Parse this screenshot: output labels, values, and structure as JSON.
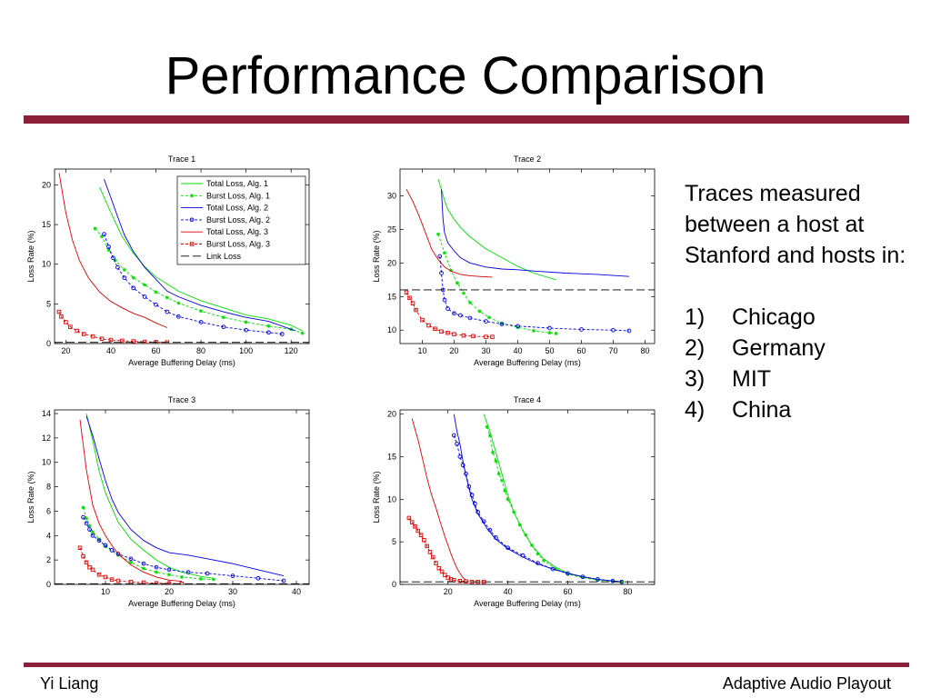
{
  "slide": {
    "title": "Performance Comparison",
    "footer_left": "Yi Liang",
    "footer_right": "Adaptive Audio Playout"
  },
  "notes": {
    "intro": "Traces measured between a host at Stanford and hosts in:",
    "items": [
      {
        "num": "1)",
        "label": "Chicago"
      },
      {
        "num": "2)",
        "label": "Germany"
      },
      {
        "num": "3)",
        "label": "MIT"
      },
      {
        "num": "4)",
        "label": "China"
      }
    ]
  },
  "colors": {
    "accent_rule": "#8b1f3a",
    "alg1": "#00dd00",
    "alg2": "#0000dd",
    "alg3": "#dd0000",
    "link": "#000000"
  },
  "legend": {
    "entries": [
      {
        "label": "Total Loss, Alg. 1",
        "color": "#00dd00",
        "style": "solid",
        "marker": "none"
      },
      {
        "label": "Burst Loss, Alg. 1",
        "color": "#00dd00",
        "style": "dashed",
        "marker": "star"
      },
      {
        "label": "Total Loss, Alg. 2",
        "color": "#0000dd",
        "style": "solid",
        "marker": "none"
      },
      {
        "label": "Burst Loss, Alg. 2",
        "color": "#0000dd",
        "style": "dashed",
        "marker": "circle"
      },
      {
        "label": "Total Loss, Alg. 3",
        "color": "#dd0000",
        "style": "solid",
        "marker": "none"
      },
      {
        "label": "Burst Loss, Alg. 3",
        "color": "#dd0000",
        "style": "dashed",
        "marker": "square"
      },
      {
        "label": "Link Loss",
        "color": "#000000",
        "style": "longdash",
        "marker": "none"
      }
    ]
  },
  "chart_data": [
    {
      "type": "line",
      "title": "Trace 1",
      "xlabel": "Average Buffering Delay (ms)",
      "ylabel": "Loss Rate (%)",
      "xlim": [
        15,
        128
      ],
      "ylim": [
        0,
        22
      ],
      "xticks": [
        20,
        40,
        60,
        80,
        100,
        120
      ],
      "yticks": [
        0,
        5,
        10,
        15,
        20
      ],
      "legend_position": "top-right",
      "grid": false,
      "series": [
        {
          "name": "Total Loss, Alg. 1",
          "x": [
            35,
            40,
            45,
            50,
            55,
            60,
            65,
            70,
            80,
            90,
            100,
            110,
            120,
            125
          ],
          "y": [
            19.7,
            16.5,
            13.5,
            11.4,
            9.7,
            8.4,
            7.5,
            6.6,
            5.4,
            4.5,
            3.6,
            3.1,
            2.3,
            1.6
          ]
        },
        {
          "name": "Burst Loss, Alg. 1",
          "x": [
            33,
            36,
            39,
            42,
            46,
            50,
            55,
            60,
            65,
            70,
            80,
            90,
            100,
            110,
            120,
            125
          ],
          "y": [
            14.5,
            13.5,
            11.8,
            10.5,
            9.3,
            8.3,
            7.4,
            6.5,
            5.8,
            5.1,
            4.1,
            3.3,
            2.7,
            2.2,
            1.8,
            1.3
          ]
        },
        {
          "name": "Total Loss, Alg. 2",
          "x": [
            37,
            40,
            43,
            46,
            50,
            55,
            60,
            65,
            70,
            80,
            90,
            100,
            110,
            120,
            122
          ],
          "y": [
            20.7,
            18.4,
            16.0,
            13.7,
            11.6,
            9.6,
            8.1,
            6.6,
            5.9,
            4.8,
            4.0,
            3.3,
            2.8,
            1.8,
            1.6
          ]
        },
        {
          "name": "Burst Loss, Alg. 2",
          "x": [
            37,
            39,
            41,
            43,
            46,
            50,
            55,
            60,
            65,
            70,
            80,
            90,
            100,
            110,
            116
          ],
          "y": [
            13.8,
            12.2,
            10.8,
            9.6,
            8.3,
            7.0,
            5.9,
            4.9,
            4.0,
            3.4,
            2.7,
            2.1,
            1.7,
            1.4,
            1.2
          ]
        },
        {
          "name": "Total Loss, Alg. 3",
          "x": [
            17,
            20,
            23,
            26,
            30,
            35,
            40,
            45,
            50,
            55,
            60,
            65
          ],
          "y": [
            21.5,
            16.5,
            13.0,
            10.5,
            8.3,
            6.5,
            5.3,
            4.5,
            3.8,
            3.3,
            2.6,
            2.0
          ]
        },
        {
          "name": "Burst Loss, Alg. 3",
          "x": [
            17,
            18,
            20,
            22,
            25,
            28,
            32,
            36,
            40,
            45,
            50,
            55,
            60,
            65
          ],
          "y": [
            4.0,
            3.4,
            2.7,
            2.1,
            1.6,
            1.2,
            0.9,
            0.6,
            0.45,
            0.35,
            0.28,
            0.22,
            0.18,
            0.15
          ]
        },
        {
          "name": "Link Loss",
          "x": [
            15,
            128
          ],
          "y": [
            0.15,
            0.15
          ]
        }
      ]
    },
    {
      "type": "line",
      "title": "Trace 2",
      "xlabel": "Average Buffering Delay (ms)",
      "ylabel": "Loss Rate (%)",
      "xlim": [
        3,
        83
      ],
      "ylim": [
        8,
        34
      ],
      "xticks": [
        10,
        20,
        30,
        40,
        50,
        60,
        70,
        80
      ],
      "yticks": [
        10,
        15,
        20,
        25,
        30
      ],
      "grid": false,
      "series": [
        {
          "name": "Total Loss, Alg. 1",
          "x": [
            15,
            16,
            17,
            18,
            20,
            22,
            25,
            30,
            35,
            40,
            45,
            52
          ],
          "y": [
            32.5,
            31.0,
            29.3,
            28.0,
            26.5,
            25.3,
            23.9,
            22.1,
            20.8,
            19.5,
            18.5,
            17.5
          ]
        },
        {
          "name": "Burst Loss, Alg. 1",
          "x": [
            15,
            17,
            19,
            21,
            23,
            25,
            28,
            31,
            35,
            40,
            45,
            50,
            52
          ],
          "y": [
            24.3,
            21.5,
            18.9,
            17.0,
            15.5,
            14.1,
            12.8,
            11.9,
            11.0,
            10.4,
            9.9,
            9.6,
            9.5
          ]
        },
        {
          "name": "Total Loss, Alg. 2",
          "x": [
            16,
            16.5,
            17,
            18,
            20,
            22,
            25,
            30,
            35,
            40,
            45,
            55,
            65,
            75
          ],
          "y": [
            31.0,
            26.5,
            24.5,
            23.0,
            21.8,
            20.8,
            20.0,
            19.4,
            19.1,
            19.0,
            18.8,
            18.5,
            18.3,
            18.0
          ]
        },
        {
          "name": "Burst Loss, Alg. 2",
          "x": [
            15.5,
            16,
            16.5,
            17,
            18,
            20,
            22,
            25,
            30,
            35,
            40,
            50,
            60,
            70,
            75
          ],
          "y": [
            21.0,
            18.5,
            16.0,
            14.5,
            13.2,
            12.5,
            12.2,
            11.8,
            11.3,
            10.9,
            10.6,
            10.3,
            10.1,
            10.0,
            9.9
          ]
        },
        {
          "name": "Total Loss, Alg. 3",
          "x": [
            5,
            7,
            9,
            11,
            13,
            15,
            17,
            19,
            22,
            25,
            28,
            32
          ],
          "y": [
            31.0,
            29.2,
            27.0,
            24.5,
            22.0,
            20.5,
            19.4,
            18.8,
            18.3,
            18.1,
            18.0,
            17.9
          ]
        },
        {
          "name": "Burst Loss, Alg. 3",
          "x": [
            5,
            6,
            7,
            8,
            10,
            12,
            14,
            16,
            18,
            20,
            23,
            26,
            30,
            32
          ],
          "y": [
            15.6,
            14.8,
            14.0,
            13.0,
            11.5,
            10.7,
            10.2,
            9.8,
            9.6,
            9.4,
            9.2,
            9.1,
            9.0,
            9.0
          ]
        },
        {
          "name": "Link Loss",
          "x": [
            3,
            83
          ],
          "y": [
            16.0,
            16.0
          ]
        }
      ]
    },
    {
      "type": "line",
      "title": "Trace 3",
      "xlabel": "Average Buffering Delay (ms)",
      "ylabel": "Loss Rate (%)",
      "xlim": [
        2,
        42
      ],
      "ylim": [
        0,
        14.3
      ],
      "xticks": [
        10,
        20,
        30,
        40
      ],
      "yticks": [
        0,
        2,
        4,
        6,
        8,
        10,
        12,
        14
      ],
      "grid": false,
      "series": [
        {
          "name": "Total Loss, Alg. 1",
          "x": [
            7,
            8,
            9,
            10,
            11,
            12,
            14,
            16,
            18,
            20,
            22,
            25,
            27
          ],
          "y": [
            14.0,
            11.8,
            9.3,
            7.5,
            6.3,
            5.1,
            3.7,
            2.8,
            2.0,
            1.4,
            1.0,
            0.65,
            0.5
          ]
        },
        {
          "name": "Burst Loss, Alg. 1",
          "x": [
            6.5,
            7,
            7.5,
            8,
            9,
            10,
            12,
            14,
            16,
            18,
            20,
            22,
            25,
            27
          ],
          "y": [
            6.3,
            5.4,
            4.8,
            4.3,
            3.7,
            3.1,
            2.4,
            1.8,
            1.3,
            1.0,
            0.8,
            0.6,
            0.45,
            0.4
          ]
        },
        {
          "name": "Total Loss, Alg. 2",
          "x": [
            7,
            8,
            9,
            10,
            11,
            12,
            14,
            16,
            18,
            20,
            23,
            26,
            30,
            34,
            38
          ],
          "y": [
            13.8,
            12.2,
            10.3,
            8.5,
            7.0,
            5.9,
            4.5,
            3.6,
            3.0,
            2.6,
            2.4,
            2.1,
            1.7,
            1.2,
            0.7
          ]
        },
        {
          "name": "Burst Loss, Alg. 2",
          "x": [
            6.5,
            7,
            7.5,
            8,
            9,
            10,
            11,
            12,
            14,
            16,
            18,
            20,
            23,
            26,
            30,
            34,
            38
          ],
          "y": [
            5.5,
            5.0,
            4.5,
            4.0,
            3.6,
            3.2,
            2.8,
            2.5,
            2.1,
            1.7,
            1.4,
            1.2,
            1.0,
            0.9,
            0.7,
            0.5,
            0.3
          ]
        },
        {
          "name": "Total Loss, Alg. 3",
          "x": [
            6,
            7,
            8,
            9,
            10,
            11,
            12,
            14,
            16,
            18,
            20,
            22
          ],
          "y": [
            13.5,
            9.4,
            6.5,
            5.0,
            4.0,
            3.2,
            2.5,
            1.6,
            1.0,
            0.6,
            0.35,
            0.25
          ]
        },
        {
          "name": "Burst Loss, Alg. 3",
          "x": [
            6,
            6.5,
            7,
            7.5,
            8,
            9,
            10,
            11,
            12,
            14,
            16,
            18,
            20,
            22
          ],
          "y": [
            3.0,
            2.3,
            1.8,
            1.4,
            1.2,
            0.8,
            0.6,
            0.4,
            0.3,
            0.2,
            0.15,
            0.1,
            0.08,
            0.05
          ]
        },
        {
          "name": "Link Loss",
          "x": [
            2,
            42
          ],
          "y": [
            0.05,
            0.05
          ]
        }
      ]
    },
    {
      "type": "line",
      "title": "Trace 4",
      "xlabel": "Average Buffering Delay (ms)",
      "ylabel": "Loss Rate (%)",
      "xlim": [
        4,
        89
      ],
      "ylim": [
        0,
        20.5
      ],
      "xticks": [
        20,
        40,
        60,
        80
      ],
      "yticks": [
        0,
        5,
        10,
        15,
        20
      ],
      "grid": false,
      "series": [
        {
          "name": "Total Loss, Alg. 1",
          "x": [
            32,
            34,
            36,
            38,
            40,
            42,
            45,
            48,
            52,
            56,
            60,
            65,
            70,
            75,
            78
          ],
          "y": [
            20.0,
            18.0,
            15.5,
            13.0,
            10.5,
            8.5,
            6.3,
            4.6,
            3.0,
            2.0,
            1.3,
            0.9,
            0.6,
            0.4,
            0.3
          ]
        },
        {
          "name": "Burst Loss, Alg. 1",
          "x": [
            33,
            34,
            35,
            36,
            37,
            38,
            39,
            40,
            42,
            44,
            46,
            48,
            50,
            52,
            56,
            60,
            65,
            70,
            75,
            78
          ],
          "y": [
            18.5,
            17.5,
            15.5,
            14.5,
            13.0,
            12.2,
            11.0,
            10.0,
            8.5,
            7.0,
            5.8,
            4.6,
            3.6,
            2.8,
            1.8,
            1.2,
            0.8,
            0.5,
            0.35,
            0.3
          ]
        },
        {
          "name": "Total Loss, Alg. 2",
          "x": [
            22,
            23,
            24,
            25,
            26,
            27,
            28,
            30,
            33,
            36,
            40,
            45,
            50,
            55,
            60,
            65,
            70,
            75,
            78
          ],
          "y": [
            20.0,
            18.0,
            16.5,
            14.5,
            12.8,
            11.3,
            10.0,
            8.3,
            6.6,
            5.3,
            4.2,
            3.2,
            2.4,
            1.8,
            1.3,
            0.9,
            0.6,
            0.4,
            0.3
          ]
        },
        {
          "name": "Burst Loss, Alg. 2",
          "x": [
            22,
            23,
            24,
            25,
            26,
            27,
            28,
            29,
            30,
            32,
            34,
            36,
            40,
            45,
            50,
            55,
            60,
            65,
            70,
            75,
            78
          ],
          "y": [
            17.5,
            16.5,
            15.0,
            14.0,
            13.0,
            11.5,
            10.5,
            9.5,
            8.5,
            7.4,
            6.4,
            5.5,
            4.3,
            3.4,
            2.5,
            1.8,
            1.3,
            0.9,
            0.6,
            0.4,
            0.3
          ]
        },
        {
          "name": "Total Loss, Alg. 3",
          "x": [
            8,
            9,
            10,
            11,
            12,
            13,
            14,
            15,
            16,
            17,
            18,
            19,
            20,
            21,
            22,
            23,
            24,
            25,
            26
          ],
          "y": [
            19.5,
            18.2,
            17.0,
            15.5,
            14.0,
            12.5,
            11.2,
            10.0,
            9.0,
            7.8,
            6.7,
            5.6,
            4.6,
            3.6,
            2.7,
            1.9,
            1.3,
            0.8,
            0.5
          ]
        },
        {
          "name": "Burst Loss, Alg. 3",
          "x": [
            7,
            8,
            9,
            10,
            11,
            12,
            13,
            14,
            15,
            16,
            17,
            18,
            19,
            20,
            21,
            22,
            24,
            26,
            28,
            30,
            32
          ],
          "y": [
            7.8,
            7.3,
            6.8,
            6.3,
            5.8,
            5.2,
            4.5,
            3.8,
            3.2,
            2.5,
            1.9,
            1.5,
            1.1,
            0.8,
            0.6,
            0.5,
            0.4,
            0.35,
            0.3,
            0.3,
            0.3
          ]
        },
        {
          "name": "Link Loss",
          "x": [
            4,
            89
          ],
          "y": [
            0.3,
            0.3
          ]
        }
      ]
    }
  ]
}
